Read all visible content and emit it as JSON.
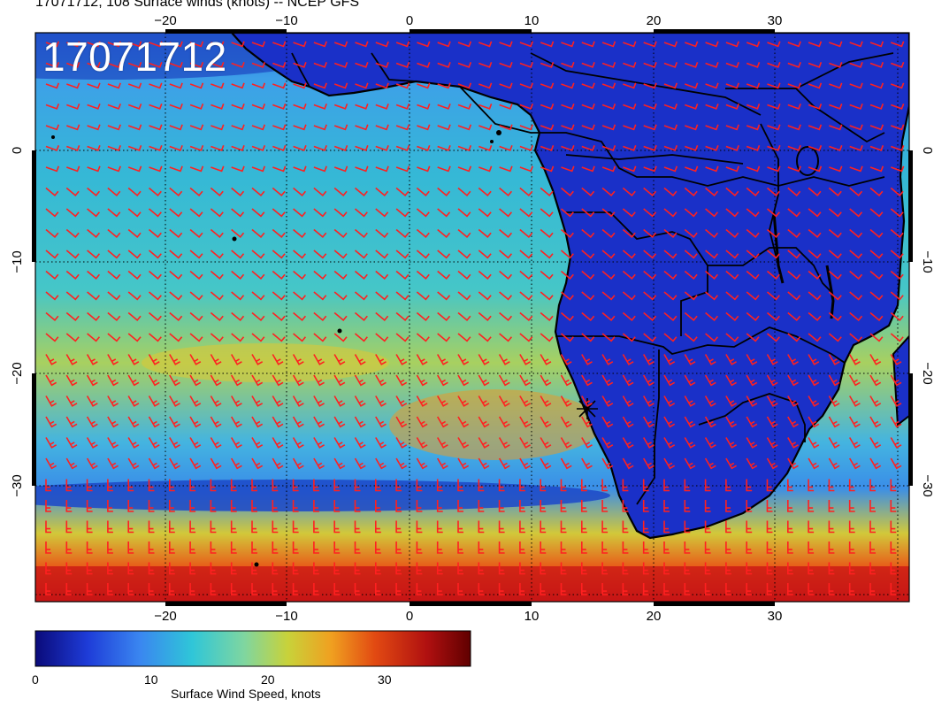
{
  "title": "17071712, 108 Surface winds (knots) -- NCEP GFS",
  "stamp": "17071712",
  "axes": {
    "lon_ticks": [
      "−20",
      "−10",
      "0",
      "10",
      "20",
      "30"
    ],
    "lat_ticks": [
      "0",
      "−10",
      "−20",
      "−30"
    ]
  },
  "colorbar": {
    "label": "Surface Wind Speed, knots",
    "ticks": [
      "0",
      "10",
      "20",
      "30"
    ],
    "colors": [
      "#0a0a7a",
      "#1e3cd8",
      "#3a86f0",
      "#2fc6d8",
      "#7fd6a0",
      "#c8d23a",
      "#f0a020",
      "#e24a12",
      "#b01010",
      "#600000"
    ]
  },
  "map": {
    "land_color": "#1a30c8",
    "barb_color": "#ff2020",
    "border_color": "#000000"
  }
}
